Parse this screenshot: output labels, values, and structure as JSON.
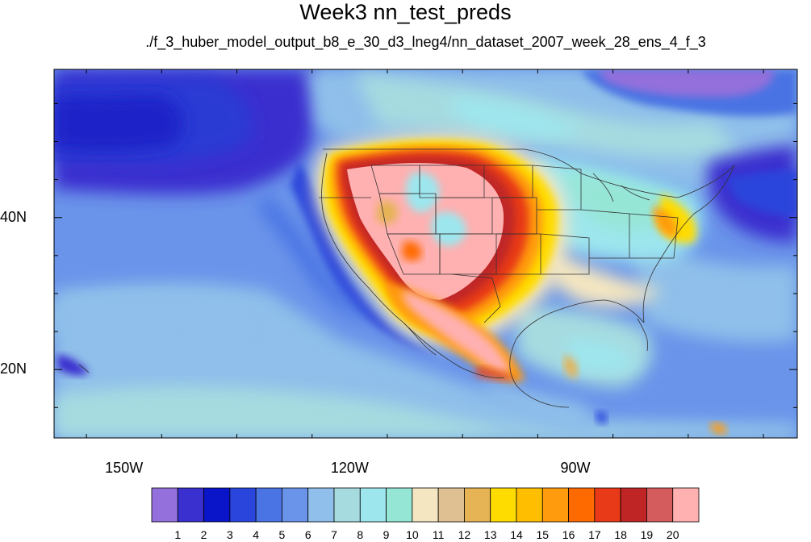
{
  "map": {
    "title": "Week3 nn_test_preds",
    "subtitle": "./f_3_huber_model_output_b8_e_30_d3_lneg4/nn_dataset_2007_week_28_ens_4_f_3",
    "lat_ticks": [
      {
        "label": "40N",
        "lat": 40
      },
      {
        "label": "20N",
        "lat": 20
      }
    ],
    "lon_ticks": [
      {
        "label": "150W",
        "lon": -150
      },
      {
        "label": "120W",
        "lon": -120
      },
      {
        "label": "90W",
        "lon": -90
      }
    ],
    "extent": {
      "lon_min": -159.3,
      "lon_max": -60.5,
      "lat_min": 11,
      "lat_max": 59.5
    }
  },
  "colorbar": {
    "labels": [
      "1",
      "2",
      "3",
      "4",
      "5",
      "6",
      "7",
      "8",
      "9",
      "10",
      "11",
      "12",
      "13",
      "14",
      "15",
      "16",
      "17",
      "18",
      "19",
      "20"
    ],
    "colors": [
      "#9370db",
      "#3a2fcf",
      "#0a14c8",
      "#2a45db",
      "#4a73e3",
      "#6a94ea",
      "#8fbfea",
      "#a6dbe0",
      "#9de6ee",
      "#96e6d6",
      "#f4e6c0",
      "#dfc093",
      "#e6b355",
      "#ffdc00",
      "#ffbf00",
      "#ff9b0c",
      "#ff6a00",
      "#e83a18",
      "#bf2525",
      "#d45c5c",
      "#ffb0b0"
    ]
  }
}
